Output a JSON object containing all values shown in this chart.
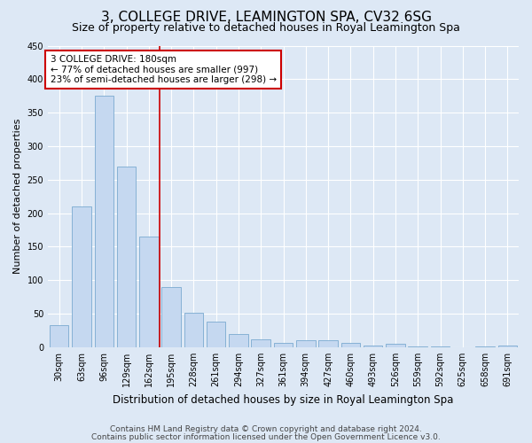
{
  "title": "3, COLLEGE DRIVE, LEAMINGTON SPA, CV32 6SG",
  "subtitle": "Size of property relative to detached houses in Royal Leamington Spa",
  "xlabel": "Distribution of detached houses by size in Royal Leamington Spa",
  "ylabel": "Number of detached properties",
  "categories": [
    "30sqm",
    "63sqm",
    "96sqm",
    "129sqm",
    "162sqm",
    "195sqm",
    "228sqm",
    "261sqm",
    "294sqm",
    "327sqm",
    "361sqm",
    "394sqm",
    "427sqm",
    "460sqm",
    "493sqm",
    "526sqm",
    "559sqm",
    "592sqm",
    "625sqm",
    "658sqm",
    "691sqm"
  ],
  "values": [
    33,
    210,
    375,
    270,
    165,
    90,
    52,
    38,
    20,
    12,
    7,
    11,
    10,
    7,
    3,
    5,
    1,
    1,
    0,
    1,
    2
  ],
  "bar_color": "#c5d8f0",
  "bar_edge_color": "#7aaad0",
  "red_line_x": 4.5,
  "annotation_text": "3 COLLEGE DRIVE: 180sqm\n← 77% of detached houses are smaller (997)\n23% of semi-detached houses are larger (298) →",
  "annotation_box_facecolor": "#ffffff",
  "annotation_box_edgecolor": "#cc0000",
  "red_line_color": "#cc0000",
  "background_color": "#dde8f5",
  "grid_color": "#ffffff",
  "ylim": [
    0,
    450
  ],
  "yticks": [
    0,
    50,
    100,
    150,
    200,
    250,
    300,
    350,
    400,
    450
  ],
  "footer_line1": "Contains HM Land Registry data © Crown copyright and database right 2024.",
  "footer_line2": "Contains public sector information licensed under the Open Government Licence v3.0.",
  "title_fontsize": 11,
  "subtitle_fontsize": 9,
  "xlabel_fontsize": 8.5,
  "ylabel_fontsize": 8,
  "tick_fontsize": 7,
  "annotation_fontsize": 7.5,
  "footer_fontsize": 6.5
}
